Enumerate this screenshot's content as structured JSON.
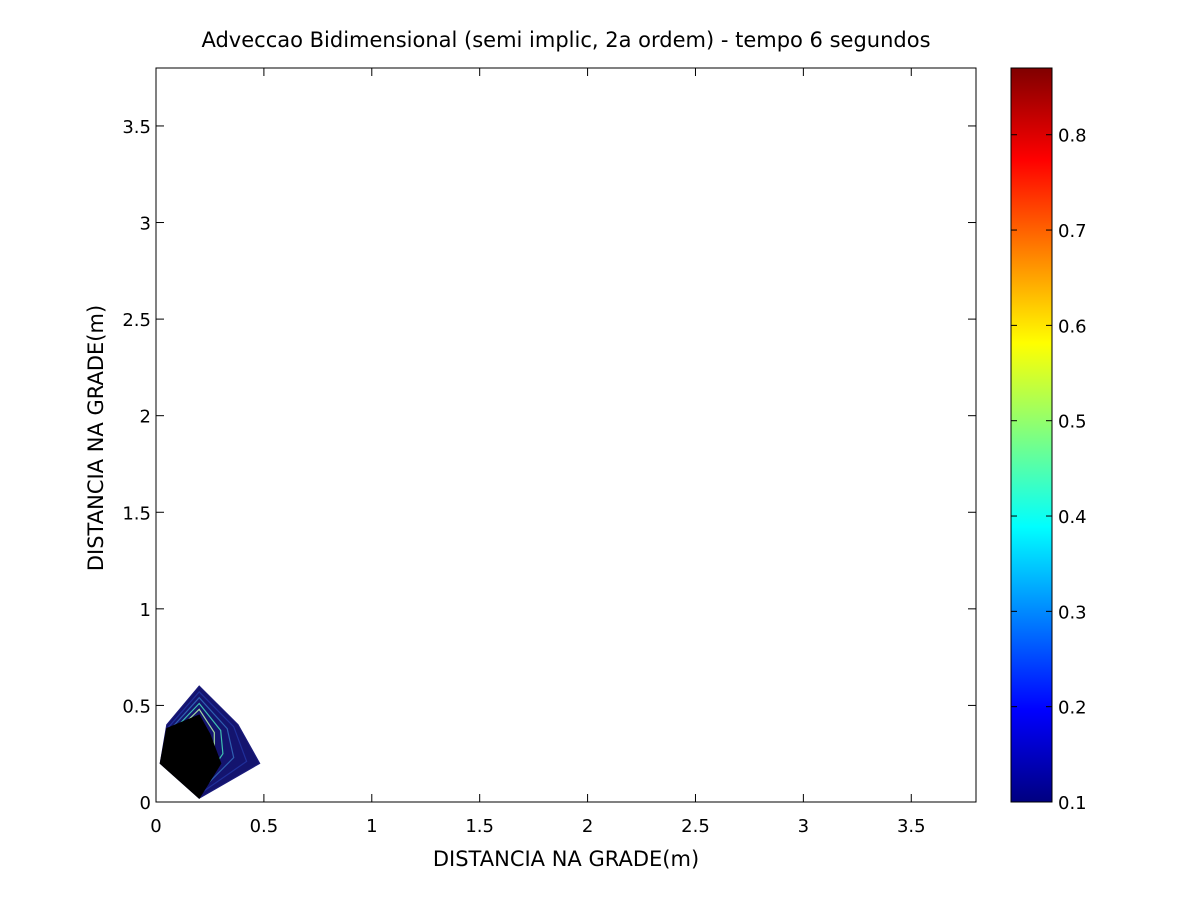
{
  "chart_data": {
    "type": "contour",
    "title": "Adveccao Bidimensional (semi implic, 2a ordem) - tempo 6 segundos",
    "xlabel": "DISTANCIA NA GRADE(m)",
    "ylabel": "DISTANCIA NA GRADE(m)",
    "xlim": [
      0,
      3.8
    ],
    "ylim": [
      0,
      3.8
    ],
    "xticks": [
      0,
      0.5,
      1,
      1.5,
      2,
      2.5,
      3,
      3.5
    ],
    "xtick_labels": [
      "0",
      "0.5",
      "1",
      "1.5",
      "2",
      "2.5",
      "3",
      "3.5"
    ],
    "yticks": [
      0,
      0.5,
      1,
      1.5,
      2,
      2.5,
      3,
      3.5
    ],
    "ytick_labels": [
      "0",
      "0.5",
      "1",
      "1.5",
      "2",
      "2.5",
      "3",
      "3.5"
    ],
    "grid": false,
    "colormap": "jet",
    "colorbar": {
      "min": 0.1,
      "max": 0.87,
      "ticks": [
        0.1,
        0.2,
        0.3,
        0.4,
        0.5,
        0.6,
        0.7,
        0.8
      ],
      "tick_labels": [
        "0.1",
        "0.2",
        "0.3",
        "0.4",
        "0.5",
        "0.6",
        "0.7",
        "0.8"
      ],
      "position": "right"
    },
    "contours": [
      {
        "level": 0.1,
        "color": "#1a1a7a",
        "points": [
          [
            0.02,
            0.2
          ],
          [
            0.05,
            0.4
          ],
          [
            0.2,
            0.6
          ],
          [
            0.38,
            0.4
          ],
          [
            0.48,
            0.2
          ],
          [
            0.2,
            0.02
          ]
        ]
      },
      {
        "level": 0.2,
        "color": "#1f2f9a",
        "points": [
          [
            0.03,
            0.2
          ],
          [
            0.06,
            0.39
          ],
          [
            0.2,
            0.57
          ],
          [
            0.36,
            0.39
          ],
          [
            0.42,
            0.21
          ],
          [
            0.2,
            0.04
          ]
        ]
      },
      {
        "level": 0.3,
        "color": "#2e5fb0",
        "points": [
          [
            0.04,
            0.21
          ],
          [
            0.07,
            0.38
          ],
          [
            0.2,
            0.54
          ],
          [
            0.33,
            0.38
          ],
          [
            0.36,
            0.23
          ],
          [
            0.2,
            0.05
          ]
        ]
      },
      {
        "level": 0.4,
        "color": "#3fbfb0",
        "points": [
          [
            0.05,
            0.22
          ],
          [
            0.08,
            0.37
          ],
          [
            0.2,
            0.51
          ],
          [
            0.3,
            0.37
          ],
          [
            0.31,
            0.25
          ],
          [
            0.2,
            0.07
          ]
        ]
      },
      {
        "level": 0.5,
        "color": "#a0d8a0",
        "points": [
          [
            0.06,
            0.23
          ],
          [
            0.09,
            0.36
          ],
          [
            0.2,
            0.48
          ],
          [
            0.27,
            0.36
          ],
          [
            0.27,
            0.27
          ],
          [
            0.2,
            0.09
          ]
        ]
      },
      {
        "level": 0.6,
        "color": "#000000",
        "points": [
          [
            0.02,
            0.2
          ],
          [
            0.05,
            0.38
          ],
          [
            0.2,
            0.45
          ],
          [
            0.25,
            0.35
          ],
          [
            0.3,
            0.2
          ],
          [
            0.2,
            0.02
          ]
        ]
      }
    ]
  }
}
